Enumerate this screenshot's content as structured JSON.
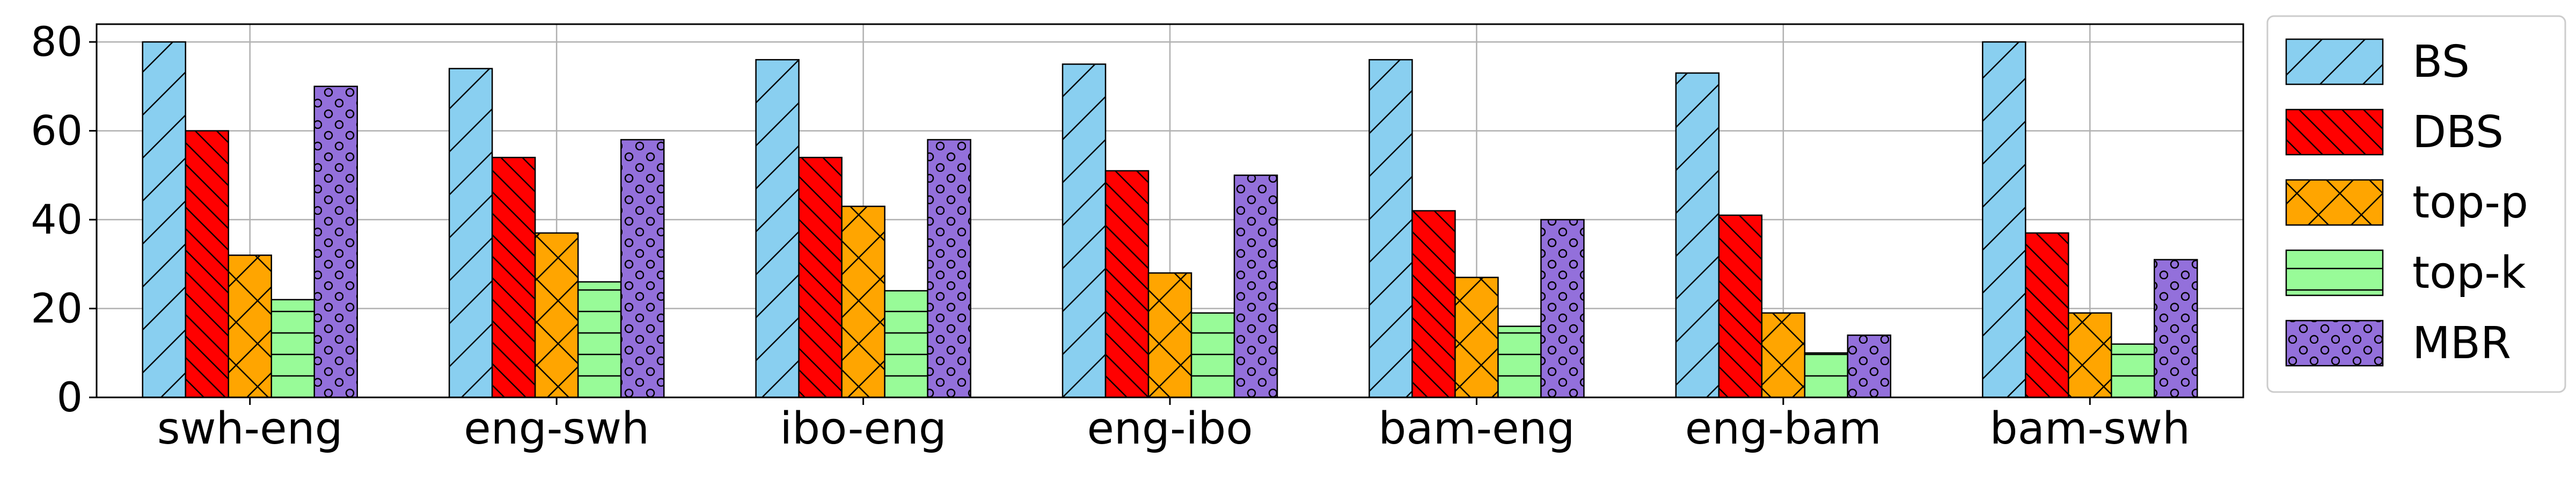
{
  "chart_data": {
    "type": "bar",
    "categories": [
      "swh-eng",
      "eng-swh",
      "ibo-eng",
      "eng-ibo",
      "bam-eng",
      "eng-bam",
      "bam-swh"
    ],
    "series": [
      {
        "name": "BS",
        "color": "#89CFF0",
        "hatch": "diagonal-slash",
        "values": [
          80,
          74,
          76,
          75,
          76,
          73,
          80
        ]
      },
      {
        "name": "DBS",
        "color": "#FF0000",
        "hatch": "diagonal-backslash",
        "values": [
          60,
          54,
          54,
          51,
          42,
          41,
          37
        ]
      },
      {
        "name": "top-p",
        "color": "#FFA500",
        "hatch": "cross-x",
        "values": [
          32,
          37,
          43,
          28,
          27,
          19,
          19
        ]
      },
      {
        "name": "top-k",
        "color": "#98FB98",
        "hatch": "horizontal",
        "values": [
          22,
          26,
          24,
          19,
          16,
          10,
          12
        ]
      },
      {
        "name": "MBR",
        "color": "#9370DB",
        "hatch": "circles",
        "values": [
          70,
          58,
          58,
          50,
          40,
          14,
          31
        ]
      }
    ],
    "title": "",
    "xlabel": "",
    "ylabel": "",
    "ylim": [
      0,
      84
    ],
    "yticks": [
      0,
      20,
      40,
      60,
      80
    ],
    "grid": true,
    "legend_position": "outside-right"
  }
}
